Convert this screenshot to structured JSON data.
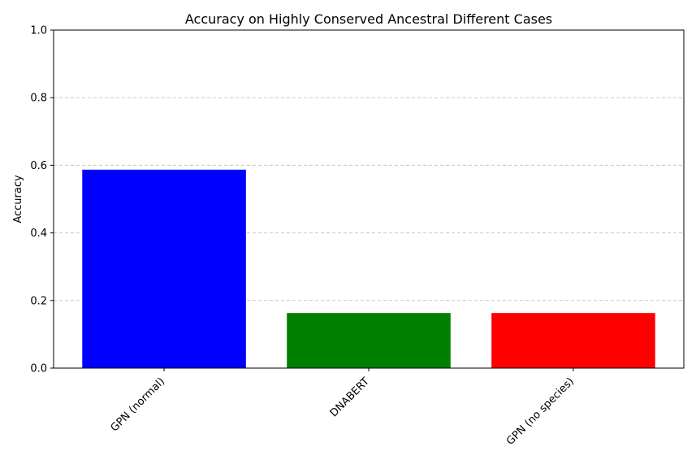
{
  "chart_data": {
    "type": "bar",
    "title": "Accuracy on Highly Conserved Ancestral Different Cases",
    "xlabel": "",
    "ylabel": "Accuracy",
    "categories": [
      "GPN (normal)",
      "DNABERT",
      "GPN (no species)"
    ],
    "values": [
      0.587,
      0.163,
      0.163
    ],
    "colors": [
      "#0000ff",
      "#008000",
      "#ff0000"
    ],
    "ylim": [
      0,
      1
    ],
    "yticks": [
      "0.0",
      "0.2",
      "0.4",
      "0.6",
      "0.8",
      "1.0"
    ],
    "grid": "y-dashed",
    "legend": "none"
  }
}
